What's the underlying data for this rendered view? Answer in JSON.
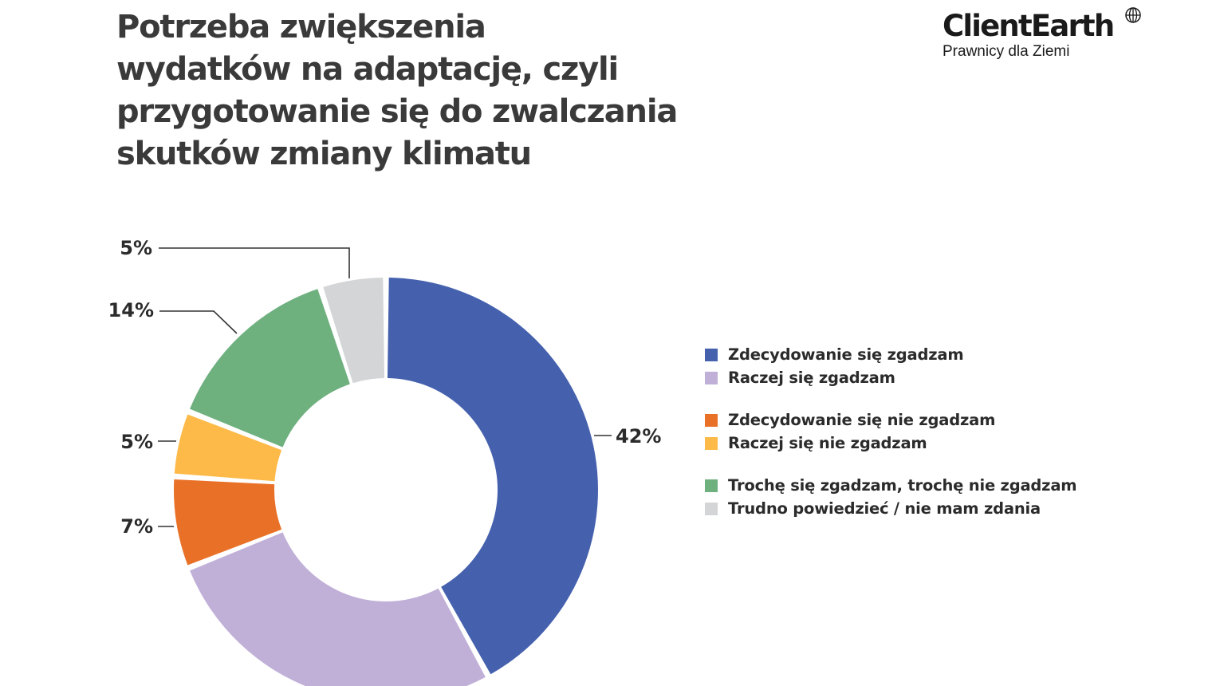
{
  "title_lines": [
    "Potrzeba zwiększenia",
    "wydatków na adaptację, czyli",
    "przygotowanie się do zwalczania",
    "skutków zmiany klimatu"
  ],
  "logo": {
    "brand": "ClientEarth",
    "tagline": "Prawnicy dla Ziemi"
  },
  "chart_data": {
    "type": "pie",
    "variant": "donut",
    "title": "Potrzeba zwiększenia wydatków na adaptację, czyli przygotowanie się do zwalczania skutków zmiany klimatu",
    "slices": [
      {
        "label": "Zdecydowanie się zgadzam",
        "value": 42,
        "value_label": "42%",
        "color": "#4561AE"
      },
      {
        "label": "Raczej się zgadzam",
        "value": 27,
        "value_label": "",
        "color": "#C0B0D8"
      },
      {
        "label": "Zdecydowanie się nie zgadzam",
        "value": 7,
        "value_label": "7%",
        "color": "#E97127"
      },
      {
        "label": "Raczej się nie zgadzam",
        "value": 5,
        "value_label": "5%",
        "color": "#FDBA48"
      },
      {
        "label": "Trochę się zgadzam, trochę nie zgadzam",
        "value": 14,
        "value_label": "14%",
        "color": "#6FB07F"
      },
      {
        "label": "Trudno powiedzieć / nie mam zdania",
        "value": 5,
        "value_label": "5%",
        "color": "#D4D5D7"
      }
    ],
    "legend_groups": [
      [
        "Zdecydowanie się zgadzam",
        "Raczej się zgadzam"
      ],
      [
        "Zdecydowanie się nie zgadzam",
        "Raczej się nie zgadzam"
      ],
      [
        "Trochę się zgadzam, trochę nie zgadzam",
        "Trudno powiedzieć / nie mam zdania"
      ]
    ],
    "legend_position": "right"
  }
}
